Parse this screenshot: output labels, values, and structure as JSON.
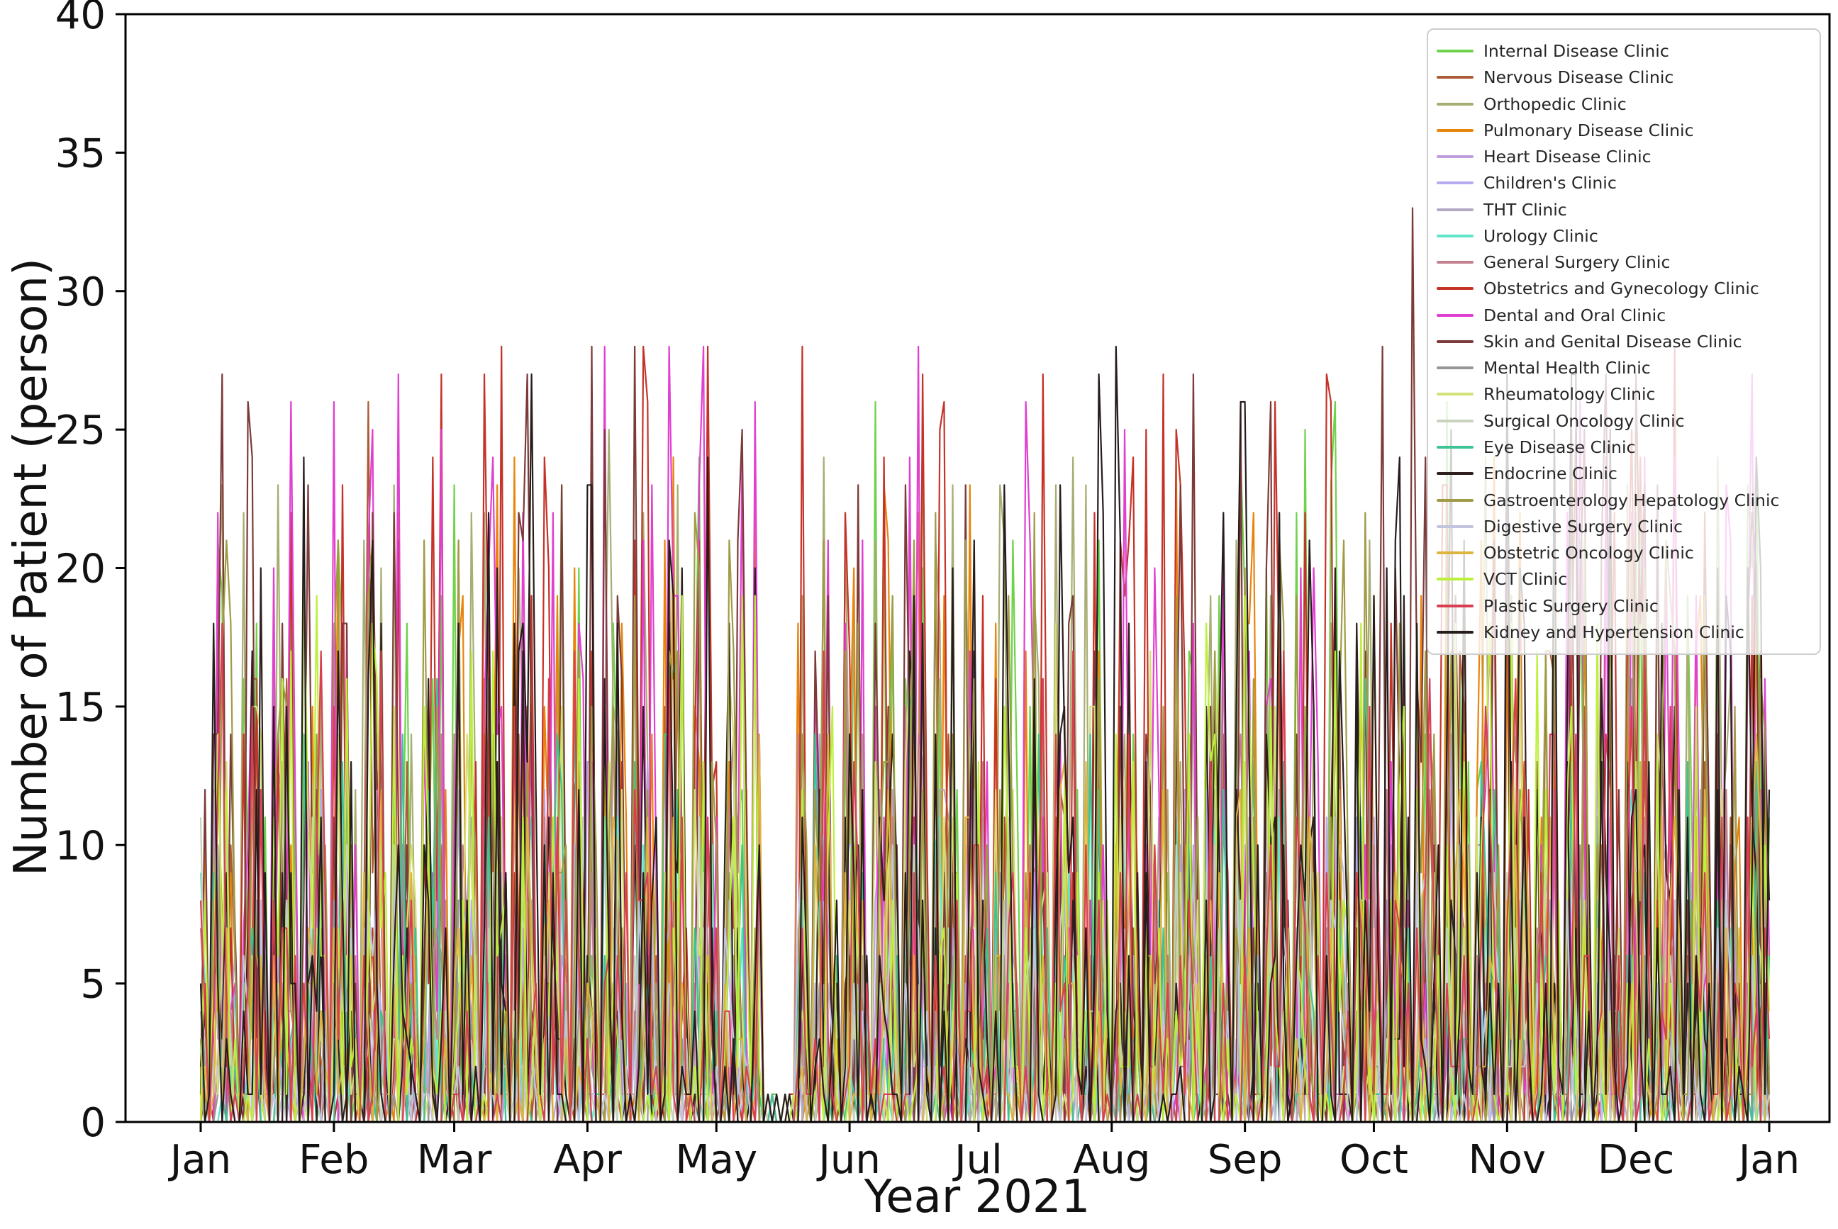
{
  "chart_data": {
    "type": "line",
    "title": "",
    "xlabel": "Year 2021",
    "ylabel": "Number of Patient (person)",
    "ylim": [
      0,
      40
    ],
    "yticks": [
      0,
      5,
      10,
      15,
      20,
      25,
      30,
      35,
      40
    ],
    "xtick_labels": [
      "Jan",
      "Feb",
      "Mar",
      "Apr",
      "May",
      "Jun",
      "Jul",
      "Aug",
      "Sep",
      "Oct",
      "Nov",
      "Dec",
      "Jan"
    ],
    "x_month_start_days": [
      0,
      31,
      59,
      90,
      120,
      151,
      181,
      212,
      243,
      273,
      304,
      334,
      365
    ],
    "n_days": 365,
    "grid": false,
    "legend_position": "upper right",
    "axis_color": "#000000",
    "text_color": "#111111",
    "series": [
      {
        "name": "Internal Disease Clinic",
        "color": "#6fd24b",
        "peak": 26
      },
      {
        "name": "Nervous Disease Clinic",
        "color": "#ad5b36",
        "peak": 17
      },
      {
        "name": "Orthopedic Clinic",
        "color": "#a8ad72",
        "peak": 25
      },
      {
        "name": "Pulmonary Disease Clinic",
        "color": "#e8840c",
        "peak": 24
      },
      {
        "name": "Heart Disease Clinic",
        "color": "#bf9cdb",
        "peak": 14
      },
      {
        "name": "Children's Clinic",
        "color": "#b7aaf2",
        "peak": 12
      },
      {
        "name": "THT Clinic",
        "color": "#b4a8c4",
        "peak": 13
      },
      {
        "name": "Urology Clinic",
        "color": "#5fe6c8",
        "peak": 12
      },
      {
        "name": "General Surgery Clinic",
        "color": "#c2808f",
        "peak": 15
      },
      {
        "name": "Obstetrics and Gynecology Clinic",
        "color": "#c53228",
        "peak": 28
      },
      {
        "name": "Dental and Oral Clinic",
        "color": "#e03fd0",
        "peak": 28
      },
      {
        "name": "Skin and Genital Disease Clinic",
        "color": "#7c3a38",
        "peak": 28
      },
      {
        "name": "Mental Health Clinic",
        "color": "#969696",
        "peak": 10
      },
      {
        "name": "Rheumatology Clinic",
        "color": "#d2e075",
        "peak": 18
      },
      {
        "name": "Surgical Oncology Clinic",
        "color": "#c8d2bd",
        "peak": 12
      },
      {
        "name": "Eye Disease Clinic",
        "color": "#3ec494",
        "peak": 16
      },
      {
        "name": "Endocrine Clinic",
        "color": "#2f2020",
        "peak": 20
      },
      {
        "name": "Gastroenterology Hepatology Clinic",
        "color": "#a09b45",
        "peak": 22
      },
      {
        "name": "Digestive Surgery Clinic",
        "color": "#c3c4de",
        "peak": 10
      },
      {
        "name": "Obstetric Oncology Clinic",
        "color": "#ddb53e",
        "peak": 14
      },
      {
        "name": "VCT Clinic",
        "color": "#bdf03c",
        "peak": 20
      },
      {
        "name": "Plastic Surgery Clinic",
        "color": "#d84052",
        "peak": 18
      },
      {
        "name": "Kidney and Hypertension Clinic",
        "color": "#261c1c",
        "peak": 27
      }
    ],
    "notable_peaks": [
      {
        "series": "Nervous Disease Clinic",
        "day": 39,
        "value": 26
      },
      {
        "series": "Obstetrics and Gynecology Clinic",
        "day": 70,
        "value": 28
      },
      {
        "series": "Dental and Oral Clinic",
        "day": 94,
        "value": 28
      },
      {
        "series": "Dental and Oral Clinic",
        "day": 109,
        "value": 28
      },
      {
        "series": "Internal Disease Clinic",
        "day": 157,
        "value": 26
      },
      {
        "series": "Kidney and Hypertension Clinic",
        "day": 213,
        "value": 28
      },
      {
        "series": "Skin and Genital Disease Clinic",
        "day": 242,
        "value": 26
      },
      {
        "series": "Skin and Genital Disease Clinic",
        "day": 249,
        "value": 26
      },
      {
        "series": "Skin and Genital Disease Clinic",
        "day": 275,
        "value": 28
      },
      {
        "series": "Skin and Genital Disease Clinic",
        "day": 282,
        "value": 33
      },
      {
        "series": "Obstetrics and Gynecology Clinic",
        "day": 289,
        "value": 23
      }
    ],
    "gap_days": [
      131,
      138
    ],
    "synth": {
      "seed": 987654,
      "power": 2.7,
      "spike_prob": 0.03,
      "sunday_factor": 0.05,
      "saturday_factor": 0.5,
      "first_weekday_offset": 5
    }
  }
}
